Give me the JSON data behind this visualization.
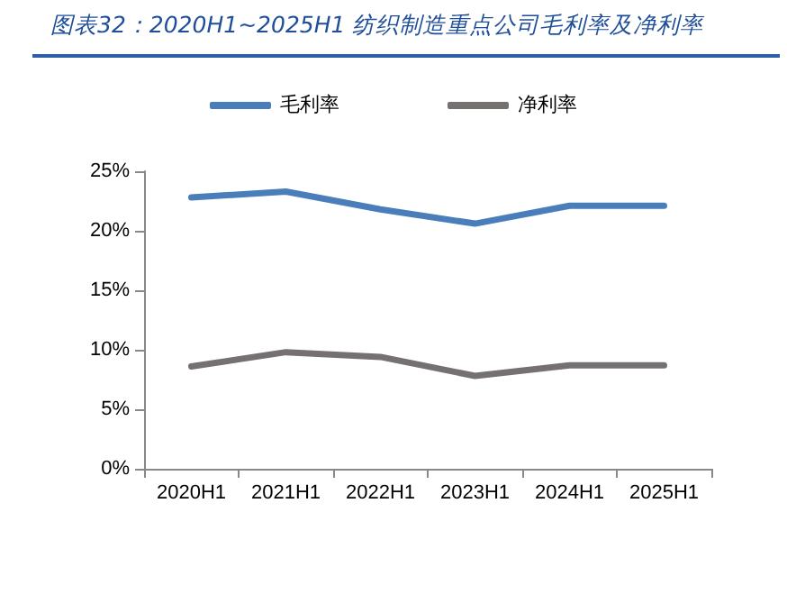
{
  "chart_data": {
    "type": "line",
    "title": "图表32：2020H1~2025H1 纺织制造重点公司毛利率及净利率",
    "categories": [
      "2020H1",
      "2021H1",
      "2022H1",
      "2023H1",
      "2024H1",
      "2025H1"
    ],
    "series": [
      {
        "name": "毛利率",
        "color": "#4a7ebb",
        "values": [
          22.8,
          23.3,
          21.8,
          20.6,
          22.1,
          22.1
        ]
      },
      {
        "name": "净利率",
        "color": "#767171",
        "values": [
          8.6,
          9.8,
          9.4,
          7.8,
          8.7,
          8.7
        ]
      }
    ],
    "ylim": [
      0,
      25
    ],
    "yticks": [
      {
        "value": 0,
        "label": "0%"
      },
      {
        "value": 5,
        "label": "5%"
      },
      {
        "value": 10,
        "label": "10%"
      },
      {
        "value": 15,
        "label": "15%"
      },
      {
        "value": 20,
        "label": "20%"
      },
      {
        "value": 25,
        "label": "25%"
      }
    ],
    "grid": false,
    "legend": "top",
    "marker": "none",
    "line_style": "solid"
  }
}
